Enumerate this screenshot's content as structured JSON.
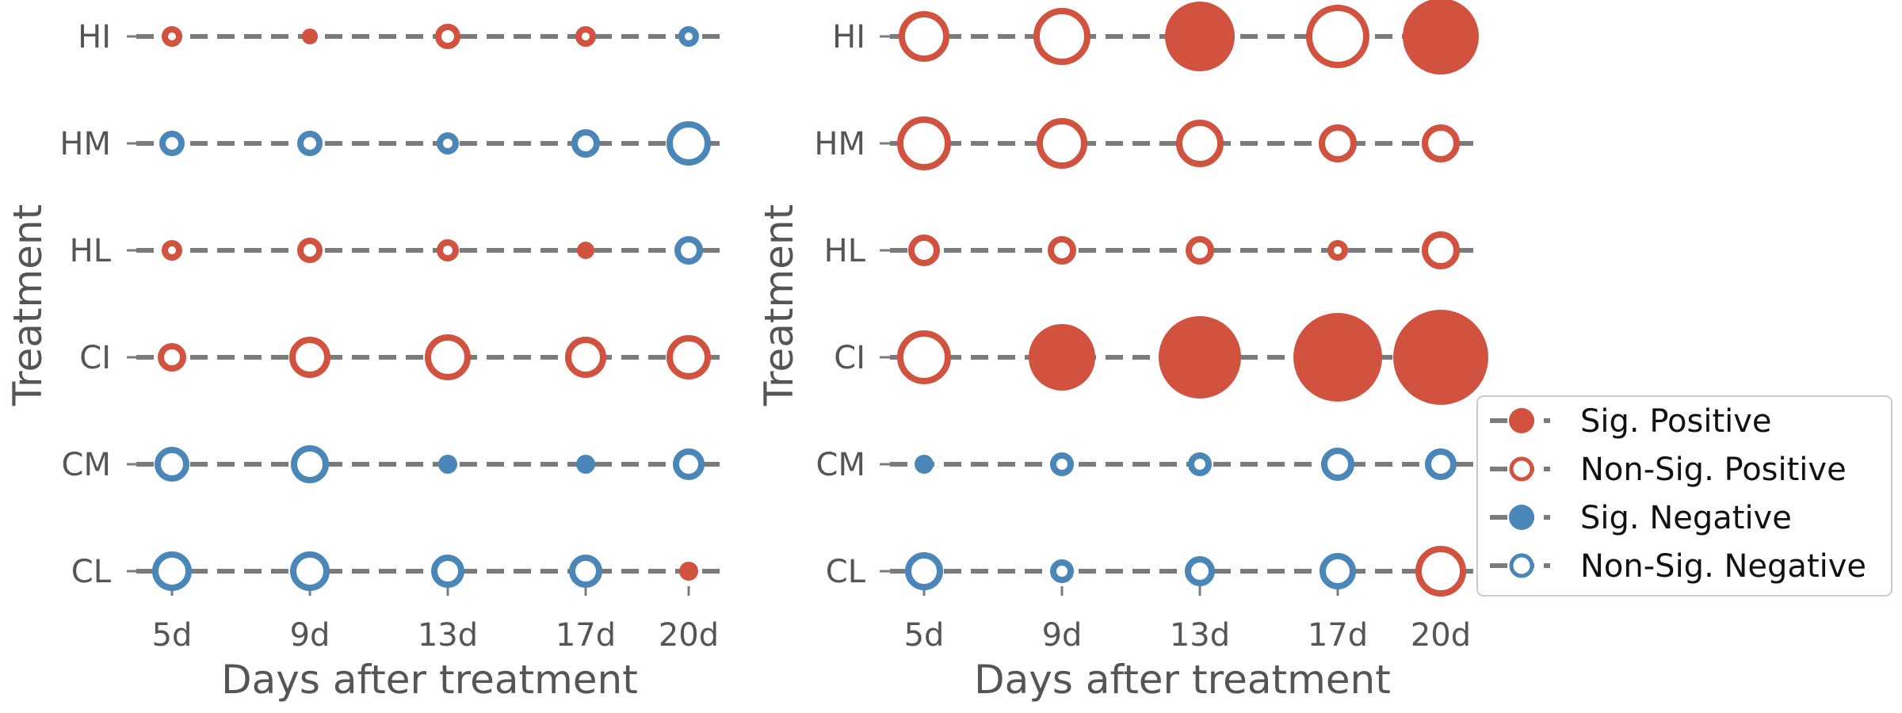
{
  "chart_data": [
    {
      "type": "scatter",
      "title": "",
      "xlabel": "Days after treatment",
      "ylabel": "Treatment",
      "x_categories": [
        "5d",
        "9d",
        "13d",
        "17d",
        "20d"
      ],
      "y_categories": [
        "HI",
        "HM",
        "HL",
        "CI",
        "CM",
        "CL"
      ],
      "grid": false,
      "points": [
        {
          "treatment": "HI",
          "day": "5d",
          "significance": "Non-Sig.",
          "direction": "Positive",
          "magnitude": 1.3
        },
        {
          "treatment": "HI",
          "day": "9d",
          "significance": "Sig.",
          "direction": "Positive",
          "magnitude": 1.0
        },
        {
          "treatment": "HI",
          "day": "13d",
          "significance": "Non-Sig.",
          "direction": "Positive",
          "magnitude": 1.6
        },
        {
          "treatment": "HI",
          "day": "17d",
          "significance": "Non-Sig.",
          "direction": "Positive",
          "magnitude": 1.3
        },
        {
          "treatment": "HI",
          "day": "20d",
          "significance": "Non-Sig.",
          "direction": "Negative",
          "magnitude": 1.3
        },
        {
          "treatment": "HM",
          "day": "5d",
          "significance": "Non-Sig.",
          "direction": "Negative",
          "magnitude": 1.6
        },
        {
          "treatment": "HM",
          "day": "9d",
          "significance": "Non-Sig.",
          "direction": "Negative",
          "magnitude": 1.6
        },
        {
          "treatment": "HM",
          "day": "13d",
          "significance": "Non-Sig.",
          "direction": "Negative",
          "magnitude": 1.4
        },
        {
          "treatment": "HM",
          "day": "17d",
          "significance": "Non-Sig.",
          "direction": "Negative",
          "magnitude": 1.8
        },
        {
          "treatment": "HM",
          "day": "20d",
          "significance": "Non-Sig.",
          "direction": "Negative",
          "magnitude": 2.8
        },
        {
          "treatment": "HL",
          "day": "5d",
          "significance": "Non-Sig.",
          "direction": "Positive",
          "magnitude": 1.3
        },
        {
          "treatment": "HL",
          "day": "9d",
          "significance": "Non-Sig.",
          "direction": "Positive",
          "magnitude": 1.6
        },
        {
          "treatment": "HL",
          "day": "13d",
          "significance": "Non-Sig.",
          "direction": "Positive",
          "magnitude": 1.4
        },
        {
          "treatment": "HL",
          "day": "17d",
          "significance": "Sig.",
          "direction": "Positive",
          "magnitude": 1.1
        },
        {
          "treatment": "HL",
          "day": "20d",
          "significance": "Non-Sig.",
          "direction": "Negative",
          "magnitude": 1.8
        },
        {
          "treatment": "CI",
          "day": "5d",
          "significance": "Non-Sig.",
          "direction": "Positive",
          "magnitude": 1.8
        },
        {
          "treatment": "CI",
          "day": "9d",
          "significance": "Non-Sig.",
          "direction": "Positive",
          "magnitude": 2.6
        },
        {
          "treatment": "CI",
          "day": "13d",
          "significance": "Non-Sig.",
          "direction": "Positive",
          "magnitude": 2.9
        },
        {
          "treatment": "CI",
          "day": "17d",
          "significance": "Non-Sig.",
          "direction": "Positive",
          "magnitude": 2.6
        },
        {
          "treatment": "CI",
          "day": "20d",
          "significance": "Non-Sig.",
          "direction": "Positive",
          "magnitude": 2.8
        },
        {
          "treatment": "CM",
          "day": "5d",
          "significance": "Non-Sig.",
          "direction": "Negative",
          "magnitude": 2.2
        },
        {
          "treatment": "CM",
          "day": "9d",
          "significance": "Non-Sig.",
          "direction": "Negative",
          "magnitude": 2.4
        },
        {
          "treatment": "CM",
          "day": "13d",
          "significance": "Sig.",
          "direction": "Negative",
          "magnitude": 1.2
        },
        {
          "treatment": "CM",
          "day": "17d",
          "significance": "Sig.",
          "direction": "Negative",
          "magnitude": 1.2
        },
        {
          "treatment": "CM",
          "day": "20d",
          "significance": "Non-Sig.",
          "direction": "Negative",
          "magnitude": 2.0
        },
        {
          "treatment": "CL",
          "day": "5d",
          "significance": "Non-Sig.",
          "direction": "Negative",
          "magnitude": 2.5
        },
        {
          "treatment": "CL",
          "day": "9d",
          "significance": "Non-Sig.",
          "direction": "Negative",
          "magnitude": 2.5
        },
        {
          "treatment": "CL",
          "day": "13d",
          "significance": "Non-Sig.",
          "direction": "Negative",
          "magnitude": 2.1
        },
        {
          "treatment": "CL",
          "day": "17d",
          "significance": "Non-Sig.",
          "direction": "Negative",
          "magnitude": 2.1
        },
        {
          "treatment": "CL",
          "day": "20d",
          "significance": "Sig.",
          "direction": "Positive",
          "magnitude": 1.2
        }
      ]
    },
    {
      "type": "scatter",
      "title": "",
      "xlabel": "Days after treatment",
      "ylabel": "Treatment",
      "x_categories": [
        "5d",
        "9d",
        "13d",
        "17d",
        "20d"
      ],
      "y_categories": [
        "HI",
        "HM",
        "HL",
        "CI",
        "CM",
        "CL"
      ],
      "grid": false,
      "points": [
        {
          "treatment": "HI",
          "day": "5d",
          "significance": "Non-Sig.",
          "direction": "Positive",
          "magnitude": 3.2
        },
        {
          "treatment": "HI",
          "day": "9d",
          "significance": "Non-Sig.",
          "direction": "Positive",
          "magnitude": 3.6
        },
        {
          "treatment": "HI",
          "day": "13d",
          "significance": "Sig.",
          "direction": "Positive",
          "magnitude": 4.4
        },
        {
          "treatment": "HI",
          "day": "17d",
          "significance": "Non-Sig.",
          "direction": "Positive",
          "magnitude": 4.0
        },
        {
          "treatment": "HI",
          "day": "20d",
          "significance": "Sig.",
          "direction": "Positive",
          "magnitude": 4.8
        },
        {
          "treatment": "HM",
          "day": "5d",
          "significance": "Non-Sig.",
          "direction": "Positive",
          "magnitude": 3.4
        },
        {
          "treatment": "HM",
          "day": "9d",
          "significance": "Non-Sig.",
          "direction": "Positive",
          "magnitude": 3.2
        },
        {
          "treatment": "HM",
          "day": "13d",
          "significance": "Non-Sig.",
          "direction": "Positive",
          "magnitude": 3.0
        },
        {
          "treatment": "HM",
          "day": "17d",
          "significance": "Non-Sig.",
          "direction": "Positive",
          "magnitude": 2.4
        },
        {
          "treatment": "HM",
          "day": "20d",
          "significance": "Non-Sig.",
          "direction": "Positive",
          "magnitude": 2.4
        },
        {
          "treatment": "HL",
          "day": "5d",
          "significance": "Non-Sig.",
          "direction": "Positive",
          "magnitude": 2.0
        },
        {
          "treatment": "HL",
          "day": "9d",
          "significance": "Non-Sig.",
          "direction": "Positive",
          "magnitude": 1.8
        },
        {
          "treatment": "HL",
          "day": "13d",
          "significance": "Non-Sig.",
          "direction": "Positive",
          "magnitude": 1.8
        },
        {
          "treatment": "HL",
          "day": "17d",
          "significance": "Non-Sig.",
          "direction": "Positive",
          "magnitude": 1.3
        },
        {
          "treatment": "HL",
          "day": "20d",
          "significance": "Non-Sig.",
          "direction": "Positive",
          "magnitude": 2.4
        },
        {
          "treatment": "CI",
          "day": "5d",
          "significance": "Non-Sig.",
          "direction": "Positive",
          "magnitude": 3.4
        },
        {
          "treatment": "CI",
          "day": "9d",
          "significance": "Sig.",
          "direction": "Positive",
          "magnitude": 4.2
        },
        {
          "treatment": "CI",
          "day": "13d",
          "significance": "Sig.",
          "direction": "Positive",
          "magnitude": 5.2
        },
        {
          "treatment": "CI",
          "day": "17d",
          "significance": "Sig.",
          "direction": "Positive",
          "magnitude": 5.6
        },
        {
          "treatment": "CI",
          "day": "20d",
          "significance": "Sig.",
          "direction": "Positive",
          "magnitude": 6.0
        },
        {
          "treatment": "CM",
          "day": "5d",
          "significance": "Sig.",
          "direction": "Negative",
          "magnitude": 1.2
        },
        {
          "treatment": "CM",
          "day": "9d",
          "significance": "Non-Sig.",
          "direction": "Negative",
          "magnitude": 1.5
        },
        {
          "treatment": "CM",
          "day": "13d",
          "significance": "Non-Sig.",
          "direction": "Negative",
          "magnitude": 1.5
        },
        {
          "treatment": "CM",
          "day": "17d",
          "significance": "Non-Sig.",
          "direction": "Negative",
          "magnitude": 2.1
        },
        {
          "treatment": "CM",
          "day": "20d",
          "significance": "Non-Sig.",
          "direction": "Negative",
          "magnitude": 2.0
        },
        {
          "treatment": "CL",
          "day": "5d",
          "significance": "Non-Sig.",
          "direction": "Negative",
          "magnitude": 2.4
        },
        {
          "treatment": "CL",
          "day": "9d",
          "significance": "Non-Sig.",
          "direction": "Negative",
          "magnitude": 1.5
        },
        {
          "treatment": "CL",
          "day": "13d",
          "significance": "Non-Sig.",
          "direction": "Negative",
          "magnitude": 1.9
        },
        {
          "treatment": "CL",
          "day": "17d",
          "significance": "Non-Sig.",
          "direction": "Negative",
          "magnitude": 2.3
        },
        {
          "treatment": "CL",
          "day": "20d",
          "significance": "Non-Sig.",
          "direction": "Positive",
          "magnitude": 3.2
        }
      ]
    }
  ],
  "legend": {
    "placement": "right",
    "items": [
      {
        "label": "Sig. Positive",
        "filled": true,
        "color": "#d1523f"
      },
      {
        "label": "Non-Sig. Positive",
        "filled": false,
        "color": "#d1523f"
      },
      {
        "label": "Sig. Negative",
        "filled": true,
        "color": "#4a86b8"
      },
      {
        "label": "Non-Sig. Negative",
        "filled": false,
        "color": "#4a86b8"
      }
    ]
  },
  "colors": {
    "positive": "#d1523f",
    "negative": "#4a86b8",
    "line": "#7b7b7b",
    "text": "#555555"
  }
}
